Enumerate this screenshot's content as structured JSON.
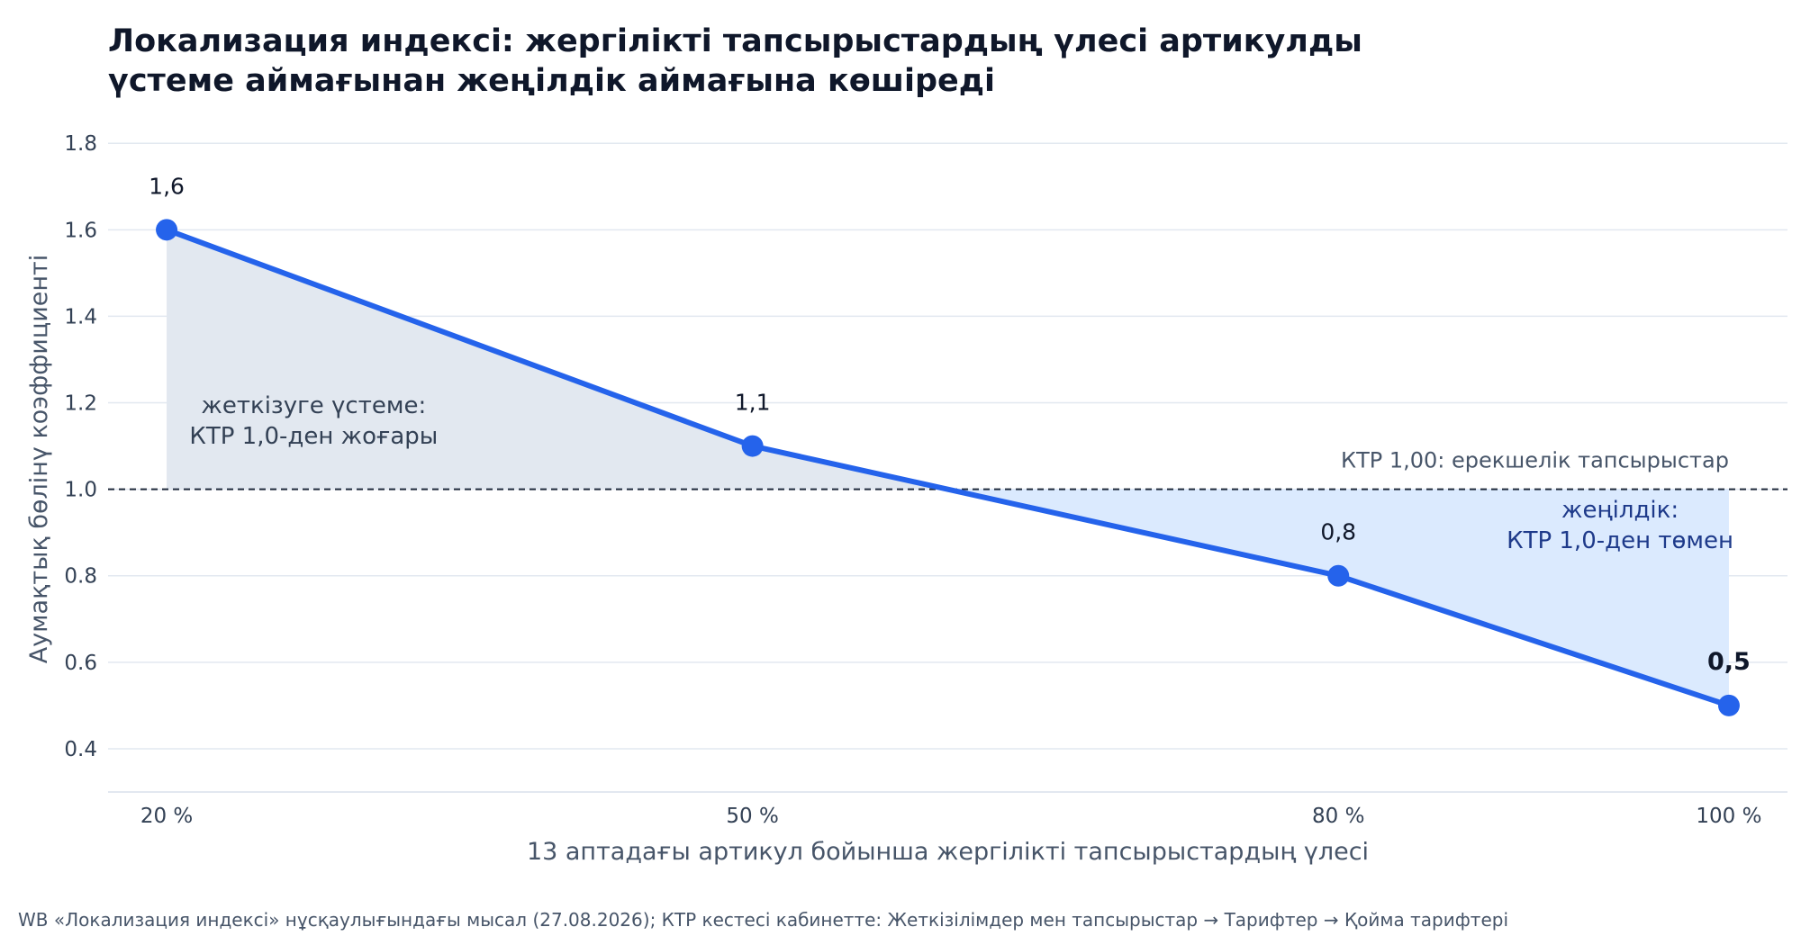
{
  "chart_data": {
    "type": "line",
    "title_lines": [
      "Локализация индексі: жергілікті тапсырыстардың үлесі артикулды",
      "үстеме аймағынан жеңілдік аймағына көшіреді"
    ],
    "xlabel": "13 аптадағы артикул бойынша жергілікті тапсырыстардың үлесі",
    "ylabel": "Аумақтық бөлінү коэффициенті",
    "categories": [
      "20 %",
      "50 %",
      "80 %",
      "100 %"
    ],
    "x": [
      20,
      50,
      80,
      100
    ],
    "values": [
      1.6,
      1.1,
      0.8,
      0.5
    ],
    "data_labels": [
      "1,6",
      "1,1",
      "0,8",
      "0,5"
    ],
    "bold_label_index": 3,
    "xlim": [
      17,
      103
    ],
    "ylim": [
      0.3,
      1.84
    ],
    "yticks": [
      0.4,
      0.6,
      0.8,
      1.0,
      1.2,
      1.4,
      1.6,
      1.8
    ],
    "ytick_labels": [
      "0.4",
      "0.6",
      "0.8",
      "1.0",
      "1.2",
      "1.4",
      "1.6",
      "1.8"
    ],
    "reference_line": {
      "y": 1.0,
      "label": "КТР 1,00: ерекшелік тапсырыстар"
    },
    "annotations": {
      "above": [
        "жеткізуге үстеме:",
        "КТР 1,0-ден жоғары"
      ],
      "below": [
        "жеңілдік:",
        "КТР 1,0-ден төмен"
      ]
    },
    "grid": true,
    "colors": {
      "line": "#2563eb",
      "fill_above": "#e2e8f0",
      "fill_below": "#dbeafe",
      "grid": "#e2e8f0",
      "reference": "#1e293b",
      "below_text": "#1e3a8a",
      "tick_text": "#334155",
      "label_text": "#0f172a",
      "axis_label": "#475569"
    }
  },
  "footer": "WB «Локализация индексі» нұсқаулығындағы мысал (27.08.2026); КТР кестесі кабинетте: Жеткізілімдер мен тапсырыстар → Тарифтер → Қойма тарифтері"
}
